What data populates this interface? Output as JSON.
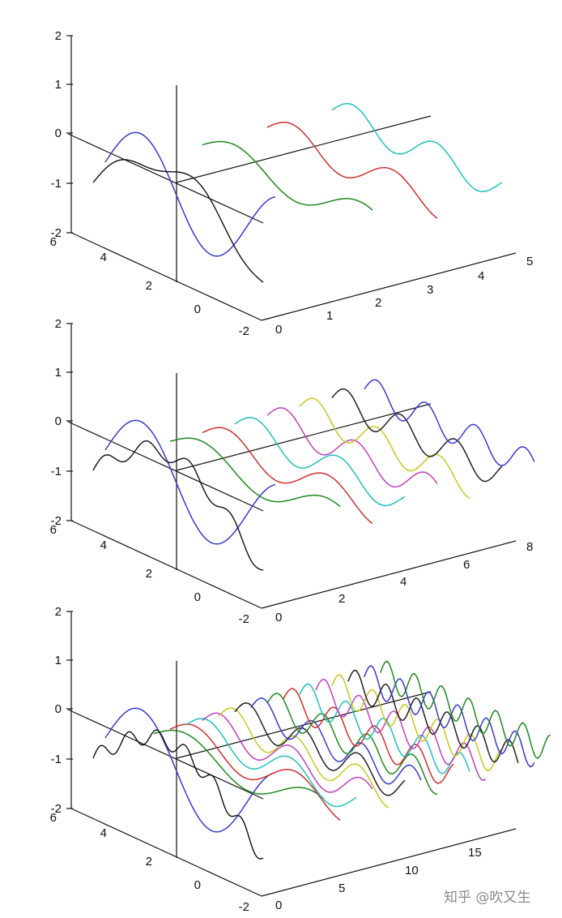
{
  "charts": [
    {
      "type": "line",
      "series_count": 4,
      "x_ticks": [
        "0",
        "1",
        "2",
        "3",
        "4",
        "5"
      ],
      "y_ticks": [
        "6",
        "4",
        "2",
        "0",
        "-2"
      ],
      "z_ticks": [
        "2",
        "1",
        "0",
        "-1",
        "-2"
      ],
      "colors": [
        "#3a3ad0",
        "#1e8a1e",
        "#d03030",
        "#20c0c0"
      ]
    },
    {
      "type": "line",
      "series_count": 8,
      "x_ticks": [
        "0",
        "2",
        "4",
        "6",
        "8"
      ],
      "y_ticks": [
        "6",
        "4",
        "2",
        "0",
        "-2"
      ],
      "z_ticks": [
        "2",
        "1",
        "0",
        "-1",
        "-2"
      ],
      "colors": [
        "#3a3ad0",
        "#1e8a1e",
        "#d03030",
        "#20c0c0",
        "#c040c0",
        "#c8c820",
        "#222222",
        "#3a3ad0"
      ]
    },
    {
      "type": "line",
      "series_count": 16,
      "x_ticks": [
        "0",
        "5",
        "10",
        "15"
      ],
      "y_ticks": [
        "6",
        "4",
        "2",
        "0",
        "-2"
      ],
      "z_ticks": [
        "2",
        "1",
        "0",
        "-1",
        "-2"
      ],
      "colors": [
        "#3a3ad0",
        "#1e8a1e",
        "#d03030",
        "#20c0c0",
        "#c040c0",
        "#c8c820",
        "#222222",
        "#3a3ad0",
        "#1e8a1e",
        "#d03030",
        "#20c0c0",
        "#c040c0",
        "#c8c820",
        "#222222",
        "#3a3ad0",
        "#1e8a1e"
      ]
    }
  ],
  "watermark": "知乎 @吹又生"
}
